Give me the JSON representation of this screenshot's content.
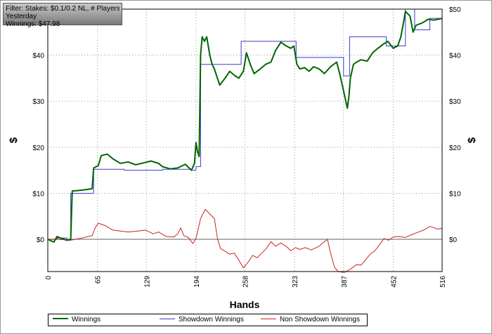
{
  "info": {
    "filter": "Filter: Stakes: $0.1/0.2 NL, # Players",
    "period": "Yesterday",
    "winnings": "Winnings: $47.98"
  },
  "chart_data": {
    "type": "line",
    "xlabel": "Hands",
    "ylabel_left": "$",
    "ylabel_right": "$",
    "xlim": [
      0,
      516
    ],
    "ylim": [
      -7,
      50
    ],
    "x_ticks": [
      0,
      65,
      129,
      194,
      258,
      323,
      387,
      452,
      516
    ],
    "x_tick_labels": [
      "0",
      "65",
      "129",
      "194",
      "258",
      "323",
      "387",
      "452",
      "516"
    ],
    "y_ticks": [
      0,
      10,
      20,
      30,
      40,
      50
    ],
    "y_tick_labels_left": [
      "$0",
      "$10",
      "$20",
      "$30",
      "$40",
      ""
    ],
    "y_tick_labels_right": [
      "$0",
      "$10",
      "$20",
      "$30",
      "$40",
      "$50"
    ],
    "grid": true,
    "legend_position": "bottom",
    "series": [
      {
        "name": "Winnings",
        "color": "#006400",
        "step": false,
        "points": [
          [
            0,
            0
          ],
          [
            8,
            -0.6
          ],
          [
            12,
            0.6
          ],
          [
            18,
            0.2
          ],
          [
            25,
            -0.2
          ],
          [
            30,
            0
          ],
          [
            32,
            10.5
          ],
          [
            40,
            10.6
          ],
          [
            50,
            10.8
          ],
          [
            58,
            11.0
          ],
          [
            60,
            15.5
          ],
          [
            66,
            16.0
          ],
          [
            70,
            18.2
          ],
          [
            78,
            18.5
          ],
          [
            85,
            17.5
          ],
          [
            95,
            16.5
          ],
          [
            105,
            16.8
          ],
          [
            115,
            16.2
          ],
          [
            125,
            16.6
          ],
          [
            135,
            17.0
          ],
          [
            145,
            16.5
          ],
          [
            150,
            15.8
          ],
          [
            160,
            15.3
          ],
          [
            170,
            15.5
          ],
          [
            180,
            16.3
          ],
          [
            188,
            15.0
          ],
          [
            192,
            16.5
          ],
          [
            194,
            21.0
          ],
          [
            196,
            19.0
          ],
          [
            198,
            18.0
          ],
          [
            200,
            40.0
          ],
          [
            202,
            44.0
          ],
          [
            205,
            43.0
          ],
          [
            208,
            44.0
          ],
          [
            212,
            40.0
          ],
          [
            215,
            38.0
          ],
          [
            218,
            37.0
          ],
          [
            225,
            33.5
          ],
          [
            232,
            35.0
          ],
          [
            238,
            36.5
          ],
          [
            245,
            35.5
          ],
          [
            250,
            35.0
          ],
          [
            256,
            36.5
          ],
          [
            260,
            40.5
          ],
          [
            265,
            38.0
          ],
          [
            270,
            36.0
          ],
          [
            278,
            37.0
          ],
          [
            285,
            38.0
          ],
          [
            292,
            38.5
          ],
          [
            298,
            41.0
          ],
          [
            305,
            42.8
          ],
          [
            312,
            42.0
          ],
          [
            318,
            41.5
          ],
          [
            322,
            42.0
          ],
          [
            326,
            38.0
          ],
          [
            330,
            37.0
          ],
          [
            336,
            37.3
          ],
          [
            342,
            36.5
          ],
          [
            348,
            37.5
          ],
          [
            355,
            37.0
          ],
          [
            362,
            36.0
          ],
          [
            370,
            37.5
          ],
          [
            378,
            38.5
          ],
          [
            382,
            36.0
          ],
          [
            386,
            33.0
          ],
          [
            390,
            30.0
          ],
          [
            392,
            28.5
          ],
          [
            394,
            31.0
          ],
          [
            396,
            35.0
          ],
          [
            400,
            38.0
          ],
          [
            404,
            38.5
          ],
          [
            410,
            39.0
          ],
          [
            418,
            38.7
          ],
          [
            425,
            40.5
          ],
          [
            432,
            41.5
          ],
          [
            440,
            42.5
          ],
          [
            445,
            43.0
          ],
          [
            452,
            41.5
          ],
          [
            458,
            42.0
          ],
          [
            462,
            44.0
          ],
          [
            466,
            47.5
          ],
          [
            468,
            49.5
          ],
          [
            471,
            49.0
          ],
          [
            474,
            48.5
          ],
          [
            478,
            45.0
          ],
          [
            482,
            46.5
          ],
          [
            490,
            47.0
          ],
          [
            498,
            47.8
          ],
          [
            505,
            47.6
          ],
          [
            516,
            47.98
          ]
        ]
      },
      {
        "name": "Showdown Winnings",
        "color": "#3c3ccc",
        "step": true,
        "points": [
          [
            0,
            0
          ],
          [
            12,
            0.3
          ],
          [
            25,
            -0.2
          ],
          [
            30,
            10.0
          ],
          [
            60,
            15.2
          ],
          [
            100,
            15.0
          ],
          [
            150,
            15.2
          ],
          [
            187,
            15.0
          ],
          [
            194,
            15.8
          ],
          [
            200,
            38.0
          ],
          [
            240,
            38.0
          ],
          [
            253,
            43.0
          ],
          [
            323,
            43.0
          ],
          [
            325,
            39.5
          ],
          [
            386,
            39.5
          ],
          [
            387,
            35.5
          ],
          [
            393,
            35.5
          ],
          [
            395,
            44.0
          ],
          [
            441,
            44.0
          ],
          [
            443,
            42.0
          ],
          [
            466,
            42.0
          ],
          [
            468,
            50.0
          ],
          [
            478,
            50.0
          ],
          [
            480,
            45.5
          ],
          [
            495,
            45.5
          ],
          [
            500,
            48.0
          ],
          [
            516,
            48.0
          ]
        ]
      },
      {
        "name": "Non Showdown Winnings",
        "color": "#cc2222",
        "step": false,
        "points": [
          [
            0,
            0
          ],
          [
            15,
            0
          ],
          [
            30,
            -0.2
          ],
          [
            45,
            0.3
          ],
          [
            58,
            0.8
          ],
          [
            62,
            2.5
          ],
          [
            66,
            3.5
          ],
          [
            75,
            3.0
          ],
          [
            85,
            2.0
          ],
          [
            95,
            1.8
          ],
          [
            105,
            1.6
          ],
          [
            118,
            1.8
          ],
          [
            128,
            2.0
          ],
          [
            138,
            1.2
          ],
          [
            145,
            1.6
          ],
          [
            155,
            0.6
          ],
          [
            165,
            0.5
          ],
          [
            170,
            1.2
          ],
          [
            174,
            2.5
          ],
          [
            178,
            0.8
          ],
          [
            184,
            0.4
          ],
          [
            188,
            -0.5
          ],
          [
            190,
            -0.9
          ],
          [
            194,
            0.2
          ],
          [
            200,
            4.5
          ],
          [
            206,
            6.5
          ],
          [
            212,
            5.5
          ],
          [
            218,
            4.5
          ],
          [
            222,
            0.2
          ],
          [
            226,
            -2.0
          ],
          [
            232,
            -2.6
          ],
          [
            238,
            -3.2
          ],
          [
            244,
            -3.0
          ],
          [
            250,
            -4.5
          ],
          [
            256,
            -6.2
          ],
          [
            262,
            -5.0
          ],
          [
            268,
            -3.5
          ],
          [
            274,
            -4.0
          ],
          [
            280,
            -3.0
          ],
          [
            286,
            -2.0
          ],
          [
            292,
            -0.5
          ],
          [
            298,
            -1.5
          ],
          [
            305,
            -0.8
          ],
          [
            312,
            -1.5
          ],
          [
            318,
            -2.5
          ],
          [
            324,
            -1.8
          ],
          [
            330,
            -2.2
          ],
          [
            337,
            -1.8
          ],
          [
            345,
            -2.3
          ],
          [
            355,
            -1.5
          ],
          [
            362,
            -0.5
          ],
          [
            366,
            0
          ],
          [
            370,
            -3.0
          ],
          [
            375,
            -6.0
          ],
          [
            380,
            -7.0
          ],
          [
            388,
            -7.2
          ],
          [
            396,
            -6.5
          ],
          [
            404,
            -5.5
          ],
          [
            410,
            -5.6
          ],
          [
            418,
            -4.0
          ],
          [
            422,
            -3.2
          ],
          [
            428,
            -2.5
          ],
          [
            434,
            -1.2
          ],
          [
            440,
            0.2
          ],
          [
            446,
            -0.2
          ],
          [
            452,
            0.5
          ],
          [
            460,
            0.6
          ],
          [
            468,
            0.4
          ],
          [
            476,
            1.0
          ],
          [
            484,
            1.5
          ],
          [
            492,
            2.0
          ],
          [
            500,
            2.8
          ],
          [
            506,
            2.5
          ],
          [
            510,
            2.2
          ],
          [
            516,
            2.4
          ]
        ]
      }
    ]
  }
}
